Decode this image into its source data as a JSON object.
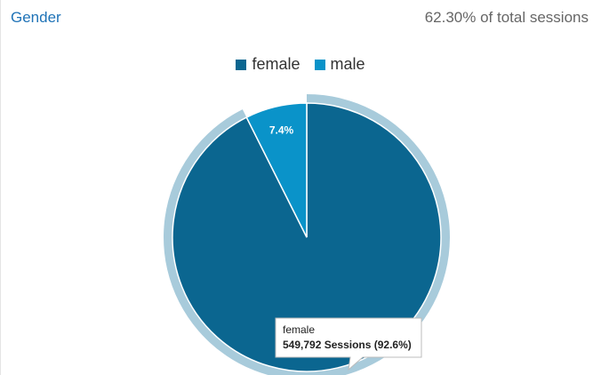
{
  "header": {
    "title": "Gender",
    "subtitle": "62.30% of total sessions"
  },
  "colors": {
    "female": "#0b6690",
    "male": "#0a93c9",
    "halo": "#a8cbdb",
    "title": "#1f73b7"
  },
  "chart_data": {
    "type": "pie",
    "title": "Gender",
    "legend": "top",
    "slices": [
      {
        "name": "female",
        "value": 92.6,
        "label": ""
      },
      {
        "name": "male",
        "value": 7.4,
        "label": "7.4%"
      }
    ],
    "highlighted": "female"
  },
  "tooltip": {
    "category": "female",
    "detail": "549,792 Sessions (92.6%)"
  }
}
